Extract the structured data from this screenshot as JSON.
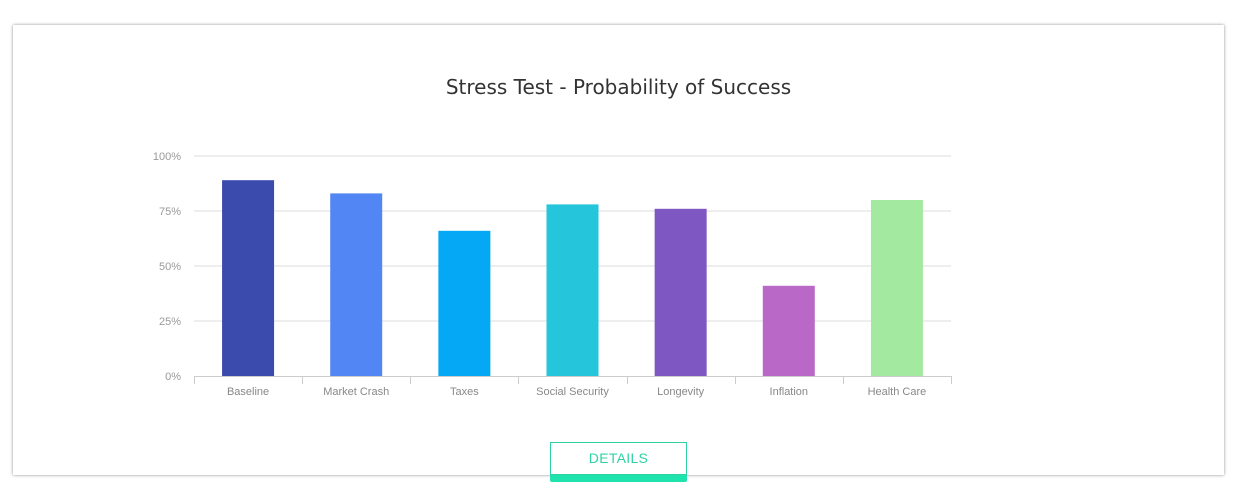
{
  "chart_data": {
    "type": "bar",
    "title": "Stress Test - Probability of Success",
    "categories": [
      "Baseline",
      "Market Crash",
      "Taxes",
      "Social Security",
      "Longevity",
      "Inflation",
      "Health Care"
    ],
    "values": [
      89,
      83,
      66,
      78,
      76,
      41,
      80
    ],
    "colors": [
      "#3a4aad",
      "#5286f4",
      "#04a8f4",
      "#25c6dc",
      "#7e57c2",
      "#ba68c8",
      "#a3e9a0"
    ],
    "ylim": [
      0,
      100
    ],
    "y_ticks": [
      "0%",
      "25%",
      "50%",
      "75%",
      "100%"
    ],
    "y_tick_values": [
      0,
      25,
      50,
      75,
      100
    ],
    "xlabel": "",
    "ylabel": "",
    "grid": true,
    "legend": "none"
  },
  "details_button": {
    "label": "DETAILS",
    "color": "#2fd3a3",
    "underline_color": "#1fe3ad"
  }
}
